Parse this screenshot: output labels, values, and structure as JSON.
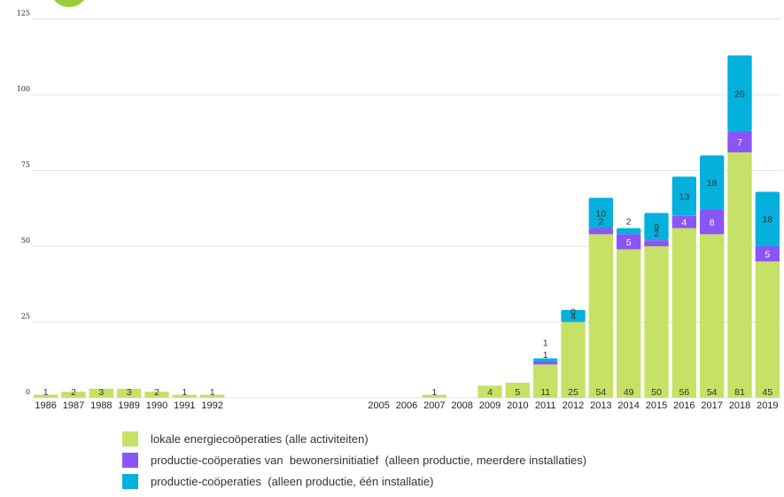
{
  "chart_data": {
    "type": "bar",
    "stacked": true,
    "categories": [
      "1986",
      "1987",
      "1988",
      "1989",
      "1990",
      "1991",
      "1992",
      "",
      "",
      "",
      "",
      "",
      "2005",
      "2006",
      "2007",
      "2008",
      "2009",
      "2010",
      "2011",
      "2012",
      "2013",
      "2014",
      "2015",
      "2016",
      "2017",
      "2018",
      "2019"
    ],
    "series": [
      {
        "name": "lokale energiecoöperaties (alle activiteiten)",
        "color": "#c7e066",
        "values": [
          1,
          2,
          3,
          3,
          2,
          1,
          1,
          null,
          null,
          null,
          null,
          null,
          null,
          null,
          1,
          null,
          4,
          5,
          11,
          25,
          54,
          49,
          50,
          56,
          54,
          81,
          45
        ],
        "labels": [
          "1",
          "2",
          "3",
          "3",
          "2",
          "1",
          "1",
          "",
          "",
          "",
          "",
          "",
          "",
          "",
          "1",
          "",
          "4",
          "5",
          "11",
          "25",
          "54",
          "49",
          "50",
          "56",
          "54",
          "81",
          "45"
        ]
      },
      {
        "name": "productie-coöperaties van  bewonersinitiatief  (alleen productie, meerdere installaties)",
        "color": "#8b55f6",
        "values": [
          null,
          null,
          null,
          null,
          null,
          null,
          null,
          null,
          null,
          null,
          null,
          null,
          null,
          null,
          null,
          null,
          null,
          null,
          1,
          0,
          2,
          5,
          2,
          4,
          8,
          7,
          5
        ],
        "labels": [
          "",
          "",
          "",
          "",
          "",
          "",
          "",
          "",
          "",
          "",
          "",
          "",
          "",
          "",
          "",
          "",
          "",
          "",
          "1",
          "0",
          "2",
          "5",
          "2",
          "4",
          "8",
          "7",
          "5"
        ]
      },
      {
        "name": "productie-coöperaties  (alleen productie, één installatie)",
        "color": "#04b0dc",
        "values": [
          null,
          null,
          null,
          null,
          null,
          null,
          null,
          null,
          null,
          null,
          null,
          null,
          null,
          null,
          null,
          null,
          null,
          null,
          1,
          4,
          10,
          2,
          9,
          13,
          18,
          25,
          18
        ],
        "labels": [
          "",
          "",
          "",
          "",
          "",
          "",
          "",
          "",
          "",
          "",
          "",
          "",
          "",
          "",
          "",
          "",
          "",
          "",
          "1",
          "4",
          "10",
          "2",
          "9",
          "13",
          "18",
          "25",
          "18"
        ]
      }
    ],
    "yticks": [
      "0",
      "25",
      "50",
      "75",
      "100",
      "125"
    ],
    "ylim": [
      0,
      125
    ],
    "grid": true
  }
}
